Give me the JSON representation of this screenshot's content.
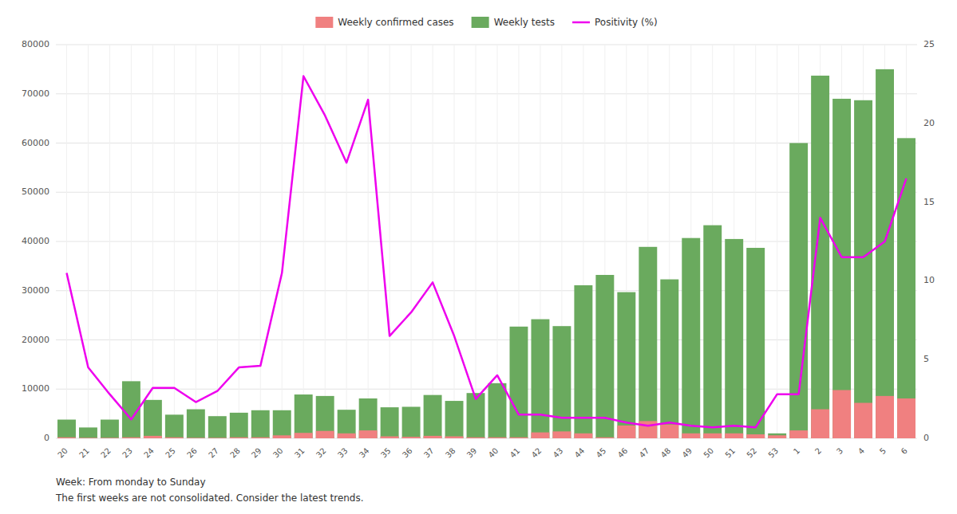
{
  "chart_data": {
    "type": "bar",
    "categories": [
      "20",
      "21",
      "22",
      "23",
      "24",
      "25",
      "26",
      "27",
      "28",
      "29",
      "30",
      "31",
      "32",
      "33",
      "34",
      "35",
      "36",
      "37",
      "38",
      "39",
      "40",
      "41",
      "42",
      "43",
      "44",
      "45",
      "46",
      "47",
      "48",
      "49",
      "50",
      "51",
      "52",
      "53",
      "1",
      "2",
      "3",
      "4",
      "5",
      "6"
    ],
    "series": [
      {
        "name": "Weekly confirmed cases",
        "type": "bar",
        "color": "#f08080",
        "values": [
          200,
          100,
          100,
          200,
          500,
          200,
          100,
          100,
          200,
          200,
          600,
          1100,
          1500,
          1000,
          1600,
          400,
          300,
          500,
          400,
          200,
          200,
          200,
          1200,
          1400,
          1000,
          200,
          2600,
          3500,
          2800,
          1000,
          1000,
          1000,
          800,
          600,
          1600,
          5900,
          9800,
          7200,
          8600,
          8100
        ]
      },
      {
        "name": "Weekly tests",
        "type": "bar",
        "color": "#6aaa5e",
        "values": [
          3800,
          2200,
          3800,
          11600,
          7800,
          4800,
          5900,
          4500,
          5200,
          5700,
          5700,
          8900,
          8600,
          5800,
          8100,
          6300,
          6400,
          8800,
          7600,
          9200,
          11200,
          22700,
          24200,
          22800,
          31100,
          33200,
          29700,
          38900,
          32300,
          40700,
          43300,
          40500,
          38700,
          1000,
          60000,
          73700,
          69000,
          68700,
          75000,
          61000
        ]
      },
      {
        "name": "Positivity (%)",
        "type": "line",
        "axis": "y2",
        "color": "#ee00ee",
        "values": [
          10.5,
          4.5,
          2.8,
          1.2,
          3.2,
          3.2,
          2.3,
          3.0,
          4.5,
          4.6,
          10.5,
          23.0,
          20.5,
          17.5,
          21.5,
          6.5,
          8.0,
          9.9,
          6.5,
          2.5,
          4.0,
          1.5,
          1.5,
          1.3,
          1.3,
          1.3,
          1.0,
          0.8,
          1.0,
          0.8,
          0.7,
          0.8,
          0.7,
          2.8,
          2.8,
          14.0,
          11.5,
          11.5,
          12.5,
          16.5
        ]
      }
    ],
    "stacked": false,
    "ylim": [
      0,
      80000
    ],
    "yticks": [
      0,
      10000,
      20000,
      30000,
      40000,
      50000,
      60000,
      70000,
      80000
    ],
    "y2lim": [
      0,
      25
    ],
    "y2ticks": [
      0,
      5,
      10,
      15,
      20,
      25
    ],
    "grid": true,
    "legend": "top",
    "annotations": [
      "Week: From monday to Sunday",
      "The first weeks are not consolidated. Consider the latest trends."
    ]
  }
}
